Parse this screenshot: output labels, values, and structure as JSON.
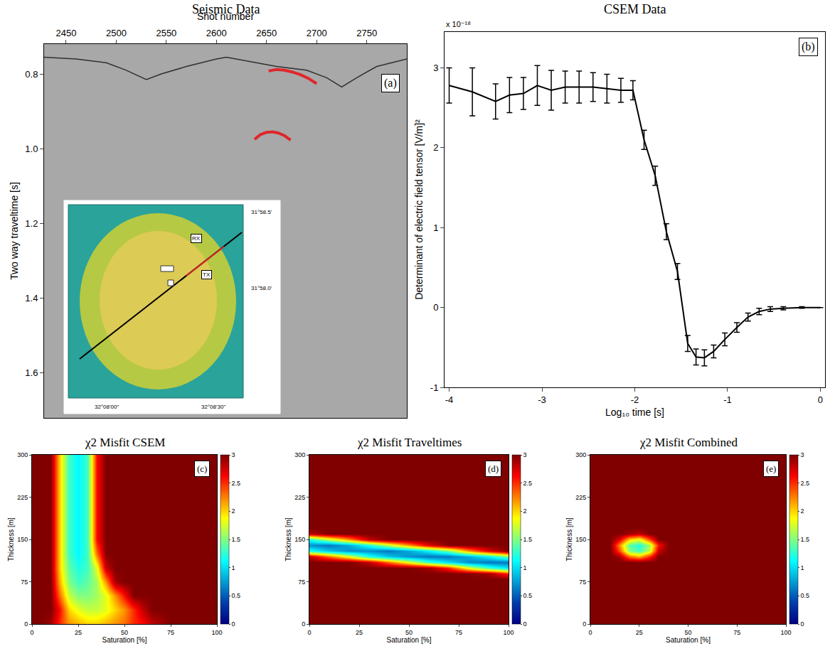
{
  "chart_data": [
    {
      "type": "line",
      "title": "Seismic Data",
      "x_label": "Shot number",
      "y_label": "Two way traveltime [s]",
      "annotations": [
        "(a)",
        "RX",
        "TX",
        "31°58.5'",
        "31°58.0'",
        "32°08'00\"",
        "32°08'30\""
      ],
      "xlim": [
        2428,
        2790
      ],
      "xticks": [
        2450,
        2500,
        2550,
        2600,
        2650,
        2700,
        2750
      ],
      "ylim": [
        1.72,
        0.72
      ],
      "yticks": [
        0.8,
        {
          "value": 1,
          "label": "1.0"
        },
        1.2,
        1.4,
        1.6
      ],
      "grid": false,
      "series": [
        {
          "color": "#303030",
          "x": [
            2428,
            2460,
            2490,
            2510,
            2530,
            2545,
            2570,
            2600,
            2610,
            2630,
            2660,
            2690,
            2710,
            2725,
            2740,
            2760,
            2790
          ],
          "values": [
            0.755,
            0.76,
            0.77,
            0.79,
            0.815,
            0.8,
            0.78,
            0.76,
            0.755,
            0.765,
            0.78,
            0.79,
            0.81,
            0.835,
            0.81,
            0.78,
            0.76
          ]
        },
        {
          "color": "#e0262b",
          "x": [
            2652,
            2660,
            2668,
            2676,
            2684,
            2692,
            2700
          ],
          "values": [
            0.792,
            0.788,
            0.79,
            0.795,
            0.802,
            0.812,
            0.826
          ]
        },
        {
          "color": "#e0262b",
          "x": [
            2638,
            2644,
            2650,
            2656,
            2662,
            2668,
            2674
          ],
          "values": [
            0.975,
            0.962,
            0.956,
            0.955,
            0.958,
            0.965,
            0.977
          ]
        }
      ]
    },
    {
      "type": "line",
      "title": "CSEM Data",
      "x_label": "Log₁₀ time [s]",
      "y_label": "Determinant of electric field tensor [V/m]²",
      "annotations": [
        "(b)",
        "x 10⁻¹⁸"
      ],
      "xlim": [
        -4.05,
        0.05
      ],
      "xticks": [
        -4,
        -3,
        -2,
        -1,
        0
      ],
      "ylim": [
        -1,
        3.45
      ],
      "yticks": [
        -1,
        0,
        1,
        2,
        3
      ],
      "grid": false,
      "x": [
        -4,
        -3.75,
        -3.5,
        -3.35,
        -3.2,
        -3.05,
        -2.9,
        -2.75,
        -2.6,
        -2.45,
        -2.3,
        -2.15,
        -2.02,
        -1.9,
        -1.78,
        -1.66,
        -1.54,
        -1.43,
        -1.34,
        -1.25,
        -1.15,
        -1.03,
        -0.9,
        -0.78,
        -0.66,
        -0.54,
        -0.4,
        -0.2,
        0
      ],
      "series": [
        {
          "color": "#000000",
          "values": [
            2.78,
            2.7,
            2.58,
            2.66,
            2.68,
            2.78,
            2.72,
            2.76,
            2.76,
            2.76,
            2.74,
            2.72,
            2.72,
            2.1,
            1.65,
            0.95,
            0.45,
            -0.45,
            -0.62,
            -0.63,
            -0.55,
            -0.4,
            -0.25,
            -0.12,
            -0.05,
            -0.02,
            -0.01,
            0,
            0
          ],
          "error": [
            0.22,
            0.3,
            0.22,
            0.22,
            0.2,
            0.25,
            0.25,
            0.2,
            0.2,
            0.18,
            0.18,
            0.15,
            0.12,
            0.12,
            0.12,
            0.1,
            0.1,
            0.1,
            0.1,
            0.1,
            0.08,
            0.08,
            0.06,
            0.05,
            0.04,
            0.03,
            0.02,
            0.01,
            0
          ]
        }
      ]
    },
    {
      "type": "heatmap",
      "title": "χ2 Misfit CSEM",
      "x_label": "Saturation [%]",
      "y_label": "Thickness [m]",
      "annotations": [
        "(c)"
      ],
      "xlim": [
        0,
        100
      ],
      "xticks": [
        0,
        25,
        50,
        75,
        100
      ],
      "ylim": [
        0,
        300
      ],
      "yticks": [
        0,
        75,
        150,
        225,
        300
      ],
      "grid": false,
      "colorbar_range": [
        0,
        3
      ],
      "colorbar_ticks": [
        0,
        0.5,
        1,
        1.5,
        2,
        2.5,
        3
      ],
      "x": [
        0,
        5,
        10,
        15,
        20,
        25,
        30,
        35,
        40,
        45,
        50,
        55,
        60,
        65,
        70,
        75,
        80,
        85,
        90,
        95,
        100
      ],
      "y": [
        0,
        25,
        50,
        75,
        100,
        125,
        150,
        175,
        200,
        225,
        250,
        275,
        300
      ],
      "z": [
        [
          3,
          3,
          2.9,
          2.5,
          2.2,
          2.1,
          2.0,
          2.0,
          2.1,
          2.2,
          2.3,
          2.5,
          2.6,
          2.8,
          2.9,
          3,
          3,
          3,
          3,
          3,
          3
        ],
        [
          3,
          3,
          3,
          2.6,
          2.0,
          1.8,
          1.7,
          1.7,
          1.8,
          2.0,
          2.2,
          2.5,
          2.8,
          3,
          3,
          3,
          3,
          3,
          3,
          3,
          3
        ],
        [
          3,
          3,
          3,
          2.3,
          1.7,
          1.5,
          1.5,
          1.6,
          1.8,
          2.2,
          2.6,
          3,
          3,
          3,
          3,
          3,
          3,
          3,
          3,
          3,
          3
        ],
        [
          3,
          3,
          3,
          2.1,
          1.5,
          1.3,
          1.4,
          1.6,
          2.2,
          2.9,
          3,
          3,
          3,
          3,
          3,
          3,
          3,
          3,
          3,
          3,
          3
        ],
        [
          3,
          3,
          3,
          2.0,
          1.4,
          1.2,
          1.3,
          1.8,
          2.8,
          3,
          3,
          3,
          3,
          3,
          3,
          3,
          3,
          3,
          3,
          3,
          3
        ],
        [
          3,
          3,
          3,
          2.0,
          1.3,
          1.1,
          1.3,
          2.3,
          3,
          3,
          3,
          3,
          3,
          3,
          3,
          3,
          3,
          3,
          3,
          3,
          3
        ],
        [
          3,
          3,
          3,
          2.0,
          1.3,
          1.1,
          1.3,
          2.6,
          3,
          3,
          3,
          3,
          3,
          3,
          3,
          3,
          3,
          3,
          3,
          3,
          3
        ],
        [
          3,
          3,
          3,
          2.0,
          1.3,
          1.1,
          1.3,
          2.6,
          3,
          3,
          3,
          3,
          3,
          3,
          3,
          3,
          3,
          3,
          3,
          3,
          3
        ],
        [
          3,
          3,
          3,
          2.0,
          1.3,
          1.1,
          1.3,
          2.6,
          3,
          3,
          3,
          3,
          3,
          3,
          3,
          3,
          3,
          3,
          3,
          3,
          3
        ],
        [
          3,
          3,
          3,
          2.0,
          1.3,
          1.1,
          1.3,
          2.6,
          3,
          3,
          3,
          3,
          3,
          3,
          3,
          3,
          3,
          3,
          3,
          3,
          3
        ],
        [
          3,
          3,
          3,
          2.0,
          1.3,
          1.1,
          1.3,
          2.6,
          3,
          3,
          3,
          3,
          3,
          3,
          3,
          3,
          3,
          3,
          3,
          3,
          3
        ],
        [
          3,
          3,
          3,
          2.0,
          1.3,
          1.1,
          1.3,
          2.6,
          3,
          3,
          3,
          3,
          3,
          3,
          3,
          3,
          3,
          3,
          3,
          3,
          3
        ],
        [
          3,
          3,
          3,
          2.0,
          1.3,
          1.1,
          1.3,
          2.6,
          3,
          3,
          3,
          3,
          3,
          3,
          3,
          3,
          3,
          3,
          3,
          3,
          3
        ]
      ]
    },
    {
      "type": "heatmap",
      "title": "χ2 Misfit Traveltimes",
      "x_label": "Saturation [%]",
      "y_label": "Thickness [m]",
      "annotations": [
        "(d)"
      ],
      "xlim": [
        0,
        100
      ],
      "xticks": [
        0,
        25,
        50,
        75,
        100
      ],
      "ylim": [
        0,
        300
      ],
      "yticks": [
        0,
        75,
        150,
        225,
        300
      ],
      "grid": false,
      "colorbar_range": [
        0,
        3
      ],
      "colorbar_ticks": [
        0,
        0.5,
        1,
        1.5,
        2,
        2.5,
        3
      ],
      "x": [
        0,
        10,
        20,
        30,
        40,
        50,
        60,
        70,
        80,
        90,
        100
      ],
      "y": [
        0,
        70,
        80,
        90,
        100,
        110,
        120,
        130,
        140,
        150,
        160,
        170,
        300
      ],
      "z": [
        [
          3,
          3,
          3,
          3,
          3,
          3,
          3,
          3,
          3,
          3,
          3
        ],
        [
          3,
          3,
          3,
          3,
          3,
          3,
          3,
          3,
          3,
          3,
          3
        ],
        [
          3,
          3,
          3,
          3,
          3,
          3,
          3,
          3,
          3,
          3,
          3
        ],
        [
          3,
          3,
          3,
          3,
          3,
          3,
          3,
          3,
          3,
          2.9,
          2.5
        ],
        [
          3,
          3,
          3,
          3,
          3,
          3,
          2.9,
          2.5,
          1.8,
          1.3,
          1.0
        ],
        [
          3,
          3,
          3,
          2.8,
          2.3,
          1.8,
          1.3,
          1.0,
          0.7,
          0.6,
          0.6
        ],
        [
          2.8,
          2.3,
          1.8,
          1.2,
          0.9,
          0.7,
          0.6,
          0.6,
          0.8,
          1.1,
          1.5
        ],
        [
          1.2,
          0.9,
          0.7,
          0.7,
          0.6,
          0.8,
          1.1,
          1.5,
          2.2,
          2.7,
          3
        ],
        [
          0.7,
          0.6,
          0.8,
          1.2,
          1.7,
          2.2,
          2.7,
          3,
          3,
          3,
          3
        ],
        [
          1.2,
          1.7,
          2.2,
          2.8,
          3,
          3,
          3,
          3,
          3,
          3,
          3
        ],
        [
          2.8,
          3,
          3,
          3,
          3,
          3,
          3,
          3,
          3,
          3,
          3
        ],
        [
          3,
          3,
          3,
          3,
          3,
          3,
          3,
          3,
          3,
          3,
          3
        ],
        [
          3,
          3,
          3,
          3,
          3,
          3,
          3,
          3,
          3,
          3,
          3
        ]
      ]
    },
    {
      "type": "heatmap",
      "title": "χ2 Misfit Combined",
      "x_label": "Saturation [%]",
      "y_label": "Thickness [m]",
      "annotations": [
        "(e)"
      ],
      "xlim": [
        0,
        100
      ],
      "xticks": [
        0,
        25,
        50,
        75,
        100
      ],
      "ylim": [
        0,
        300
      ],
      "yticks": [
        0,
        75,
        150,
        225,
        300
      ],
      "grid": false,
      "colorbar_range": [
        0,
        3
      ],
      "colorbar_ticks": [
        0,
        0.5,
        1,
        1.5,
        2,
        2.5,
        3
      ],
      "x": [
        0,
        10,
        15,
        20,
        25,
        30,
        35,
        40,
        100
      ],
      "y": [
        0,
        110,
        120,
        130,
        140,
        150,
        160,
        170,
        300
      ],
      "z": [
        [
          3,
          3,
          3,
          3,
          3,
          3,
          3,
          3,
          3
        ],
        [
          3,
          3,
          3,
          3,
          3,
          3,
          3,
          3,
          3
        ],
        [
          3,
          3,
          2.9,
          2.3,
          2.1,
          2.5,
          3,
          3,
          3
        ],
        [
          3,
          3,
          2.4,
          1.5,
          1.3,
          1.7,
          2.8,
          3,
          3
        ],
        [
          3,
          3,
          2.2,
          1.4,
          1.2,
          1.6,
          2.6,
          3,
          3
        ],
        [
          3,
          3,
          2.7,
          2.0,
          1.8,
          2.4,
          3,
          3,
          3
        ],
        [
          3,
          3,
          3,
          2.9,
          2.8,
          3,
          3,
          3,
          3
        ],
        [
          3,
          3,
          3,
          3,
          3,
          3,
          3,
          3,
          3
        ],
        [
          3,
          3,
          3,
          3,
          3,
          3,
          3,
          3,
          3
        ]
      ]
    }
  ]
}
